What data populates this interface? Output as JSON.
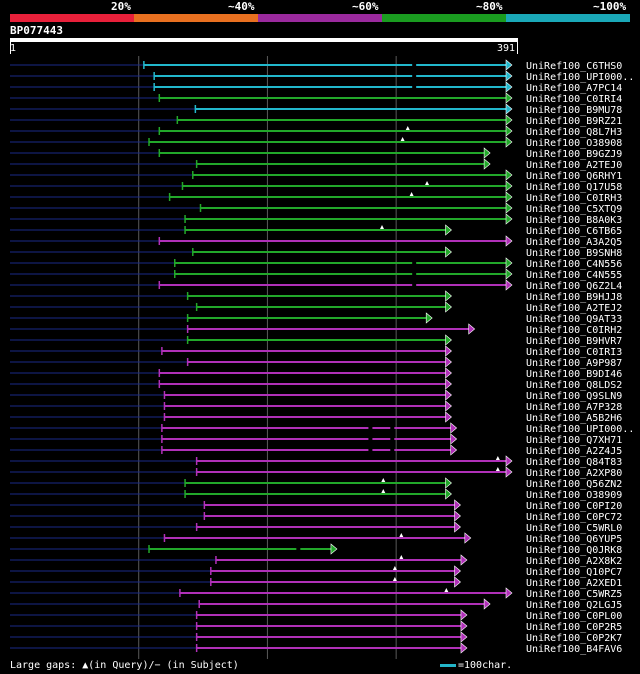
{
  "legend": {
    "segments": [
      {
        "color": "#e8203a",
        "label": "20%"
      },
      {
        "color": "#e87020",
        "label": "~40%"
      },
      {
        "color": "#9b2a9e",
        "label": "~60%"
      },
      {
        "color": "#1a9c20",
        "label": "~80%"
      },
      {
        "color": "#1aa8b8",
        "label": "~100%"
      }
    ]
  },
  "query": {
    "name": "BP077443",
    "start_label": "1",
    "end_label": "391",
    "length": 391
  },
  "colors": {
    "cyan": "#22b8cc",
    "green": "#22a82a",
    "magenta": "#b030b8",
    "gap": "#1a2a88",
    "grid": "#5a5a5a"
  },
  "footer": {
    "left": "Large gaps: ▲(in Query)/− (in Subject)",
    "right": "=100char."
  },
  "hits": [
    {
      "name": "UniRef100_C6THS0",
      "color": "cyan",
      "start": 105,
      "end": 391,
      "end_type": "arrow",
      "gaps_q": [],
      "gaps_s": [
        315
      ]
    },
    {
      "name": "UniRef100_UPI000..",
      "color": "cyan",
      "start": 113,
      "end": 391,
      "end_type": "arrow",
      "gaps_q": [],
      "gaps_s": [
        315
      ]
    },
    {
      "name": "UniRef100_A7PC14",
      "color": "cyan",
      "start": 113,
      "end": 391,
      "end_type": "arrow",
      "gaps_q": [],
      "gaps_s": [
        315
      ]
    },
    {
      "name": "UniRef100_C0IRI4",
      "color": "green",
      "start": 117,
      "end": 391,
      "end_type": "arrow",
      "gaps_q": [],
      "gaps_s": []
    },
    {
      "name": "UniRef100_B9MU78",
      "color": "cyan",
      "start": 145,
      "end": 391,
      "end_type": "arrow",
      "gaps_q": [],
      "gaps_s": []
    },
    {
      "name": "UniRef100_B9RZ21",
      "color": "green",
      "start": 131,
      "end": 391,
      "end_type": "arrow",
      "gaps_q": [],
      "gaps_s": []
    },
    {
      "name": "UniRef100_Q8L7H3",
      "color": "green",
      "start": 117,
      "end": 391,
      "end_type": "arrow",
      "gaps_q": [
        310
      ],
      "gaps_s": []
    },
    {
      "name": "UniRef100_O38908",
      "color": "green",
      "start": 109,
      "end": 391,
      "end_type": "arrow",
      "gaps_q": [
        306
      ],
      "gaps_s": []
    },
    {
      "name": "UniRef100_B9GZJ9",
      "color": "green",
      "start": 117,
      "end": 374,
      "end_type": "arrow",
      "gaps_q": [],
      "gaps_s": []
    },
    {
      "name": "UniRef100_A2TEJ0",
      "color": "green",
      "start": 146,
      "end": 374,
      "end_type": "arrow",
      "gaps_q": [],
      "gaps_s": []
    },
    {
      "name": "UniRef100_Q6RHY1",
      "color": "green",
      "start": 143,
      "end": 391,
      "end_type": "arrow",
      "gaps_q": [],
      "gaps_s": []
    },
    {
      "name": "UniRef100_Q17U58",
      "color": "green",
      "start": 135,
      "end": 391,
      "end_type": "arrow",
      "gaps_q": [
        325
      ],
      "gaps_s": []
    },
    {
      "name": "UniRef100_C0IRH3",
      "color": "green",
      "start": 125,
      "end": 391,
      "end_type": "arrow",
      "gaps_q": [
        313
      ],
      "gaps_s": []
    },
    {
      "name": "UniRef100_C5XTQ9",
      "color": "green",
      "start": 149,
      "end": 391,
      "end_type": "arrow",
      "gaps_q": [],
      "gaps_s": []
    },
    {
      "name": "UniRef100_B8A0K3",
      "color": "green",
      "start": 137,
      "end": 391,
      "end_type": "arrow",
      "gaps_q": [],
      "gaps_s": []
    },
    {
      "name": "UniRef100_C6TB65",
      "color": "green",
      "start": 137,
      "end": 344,
      "end_type": "arrow",
      "gaps_q": [
        290
      ],
      "gaps_s": []
    },
    {
      "name": "UniRef100_A3A2Q5",
      "color": "magenta",
      "start": 117,
      "end": 391,
      "end_type": "arrow",
      "gaps_q": [],
      "gaps_s": []
    },
    {
      "name": "UniRef100_B9SNH8",
      "color": "green",
      "start": 143,
      "end": 344,
      "end_type": "arrow",
      "gaps_q": [],
      "gaps_s": []
    },
    {
      "name": "UniRef100_C4N556",
      "color": "green",
      "start": 129,
      "end": 391,
      "end_type": "arrow",
      "gaps_q": [],
      "gaps_s": [
        315
      ]
    },
    {
      "name": "UniRef100_C4N555",
      "color": "green",
      "start": 129,
      "end": 391,
      "end_type": "arrow",
      "gaps_q": [],
      "gaps_s": [
        315
      ]
    },
    {
      "name": "UniRef100_Q6Z2L4",
      "color": "magenta",
      "start": 117,
      "end": 391,
      "end_type": "arrow",
      "gaps_q": [],
      "gaps_s": [
        315
      ]
    },
    {
      "name": "UniRef100_B9HJJ8",
      "color": "green",
      "start": 139,
      "end": 344,
      "end_type": "arrow",
      "gaps_q": [],
      "gaps_s": []
    },
    {
      "name": "UniRef100_A2TEJ2",
      "color": "green",
      "start": 146,
      "end": 344,
      "end_type": "arrow",
      "gaps_q": [],
      "gaps_s": []
    },
    {
      "name": "UniRef100_Q9AT33",
      "color": "green",
      "start": 139,
      "end": 329,
      "end_type": "arrow",
      "gaps_q": [],
      "gaps_s": []
    },
    {
      "name": "UniRef100_C0IRH2",
      "color": "magenta",
      "start": 139,
      "end": 362,
      "end_type": "arrow",
      "gaps_q": [],
      "gaps_s": []
    },
    {
      "name": "UniRef100_B9HVR7",
      "color": "green",
      "start": 139,
      "end": 344,
      "end_type": "arrow",
      "gaps_q": [],
      "gaps_s": []
    },
    {
      "name": "UniRef100_C0IRI3",
      "color": "magenta",
      "start": 119,
      "end": 344,
      "end_type": "arrow",
      "gaps_q": [],
      "gaps_s": []
    },
    {
      "name": "UniRef100_A9P987",
      "color": "magenta",
      "start": 139,
      "end": 344,
      "end_type": "arrow",
      "gaps_q": [],
      "gaps_s": []
    },
    {
      "name": "UniRef100_B9DI46",
      "color": "magenta",
      "start": 117,
      "end": 344,
      "end_type": "arrow",
      "gaps_q": [],
      "gaps_s": []
    },
    {
      "name": "UniRef100_Q8LDS2",
      "color": "magenta",
      "start": 117,
      "end": 344,
      "end_type": "arrow",
      "gaps_q": [],
      "gaps_s": []
    },
    {
      "name": "UniRef100_Q9SLN9",
      "color": "magenta",
      "start": 121,
      "end": 344,
      "end_type": "arrow",
      "gaps_q": [],
      "gaps_s": []
    },
    {
      "name": "UniRef100_A7P328",
      "color": "magenta",
      "start": 121,
      "end": 344,
      "end_type": "arrow",
      "gaps_q": [],
      "gaps_s": []
    },
    {
      "name": "UniRef100_A5B2H6",
      "color": "magenta",
      "start": 121,
      "end": 344,
      "end_type": "arrow",
      "gaps_q": [],
      "gaps_s": []
    },
    {
      "name": "UniRef100_UPI000..",
      "color": "magenta",
      "start": 119,
      "end": 348,
      "end_type": "arrow",
      "gaps_q": [],
      "gaps_s": [
        281,
        298
      ]
    },
    {
      "name": "UniRef100_Q7XH71",
      "color": "magenta",
      "start": 119,
      "end": 348,
      "end_type": "arrow",
      "gaps_q": [],
      "gaps_s": [
        281,
        298
      ]
    },
    {
      "name": "UniRef100_A2Z4J5",
      "color": "magenta",
      "start": 119,
      "end": 348,
      "end_type": "arrow",
      "gaps_q": [],
      "gaps_s": [
        281,
        298
      ]
    },
    {
      "name": "UniRef100_Q84T83",
      "color": "magenta",
      "start": 146,
      "end": 391,
      "end_type": "arrow",
      "gaps_q": [
        380
      ],
      "gaps_s": []
    },
    {
      "name": "UniRef100_A2XP80",
      "color": "magenta",
      "start": 146,
      "end": 391,
      "end_type": "arrow",
      "gaps_q": [
        380
      ],
      "gaps_s": []
    },
    {
      "name": "UniRef100_Q56ZN2",
      "color": "green",
      "start": 137,
      "end": 344,
      "end_type": "arrow",
      "gaps_q": [
        291
      ],
      "gaps_s": []
    },
    {
      "name": "UniRef100_O38909",
      "color": "green",
      "start": 137,
      "end": 344,
      "end_type": "arrow",
      "gaps_q": [
        291
      ],
      "gaps_s": []
    },
    {
      "name": "UniRef100_C0PI20",
      "color": "magenta",
      "start": 152,
      "end": 351,
      "end_type": "arrow",
      "gaps_q": [],
      "gaps_s": []
    },
    {
      "name": "UniRef100_C0PC72",
      "color": "magenta",
      "start": 152,
      "end": 351,
      "end_type": "arrow",
      "gaps_q": [],
      "gaps_s": []
    },
    {
      "name": "UniRef100_C5WRL0",
      "color": "magenta",
      "start": 146,
      "end": 351,
      "end_type": "arrow",
      "gaps_q": [],
      "gaps_s": []
    },
    {
      "name": "UniRef100_Q6YUP5",
      "color": "magenta",
      "start": 121,
      "end": 359,
      "end_type": "arrow",
      "gaps_q": [
        305
      ],
      "gaps_s": []
    },
    {
      "name": "UniRef100_Q0JRK8",
      "color": "green",
      "start": 109,
      "end": 255,
      "end_type": "arrow",
      "gaps_q": [],
      "gaps_s": [
        225
      ]
    },
    {
      "name": "UniRef100_A2X8K2",
      "color": "magenta",
      "start": 161,
      "end": 356,
      "end_type": "arrow",
      "gaps_q": [
        305
      ],
      "gaps_s": []
    },
    {
      "name": "UniRef100_Q10PC7",
      "color": "magenta",
      "start": 157,
      "end": 351,
      "end_type": "arrow",
      "gaps_q": [
        300
      ],
      "gaps_s": []
    },
    {
      "name": "UniRef100_A2XED1",
      "color": "magenta",
      "start": 157,
      "end": 351,
      "end_type": "arrow",
      "gaps_q": [
        300
      ],
      "gaps_s": []
    },
    {
      "name": "UniRef100_C5WRZ5",
      "color": "magenta",
      "start": 133,
      "end": 391,
      "end_type": "arrow",
      "gaps_q": [
        340
      ],
      "gaps_s": []
    },
    {
      "name": "UniRef100_Q2LGJ5",
      "color": "magenta",
      "start": 148,
      "end": 374,
      "end_type": "arrow",
      "gaps_q": [],
      "gaps_s": []
    },
    {
      "name": "UniRef100_C0PL00",
      "color": "magenta",
      "start": 146,
      "end": 356,
      "end_type": "arrow",
      "gaps_q": [],
      "gaps_s": []
    },
    {
      "name": "UniRef100_C0P2R5",
      "color": "magenta",
      "start": 146,
      "end": 356,
      "end_type": "arrow",
      "gaps_q": [],
      "gaps_s": []
    },
    {
      "name": "UniRef100_C0P2K7",
      "color": "magenta",
      "start": 146,
      "end": 356,
      "end_type": "arrow",
      "gaps_q": [],
      "gaps_s": []
    },
    {
      "name": "UniRef100_B4FAV6",
      "color": "magenta",
      "start": 146,
      "end": 356,
      "end_type": "arrow",
      "gaps_q": [],
      "gaps_s": []
    }
  ]
}
